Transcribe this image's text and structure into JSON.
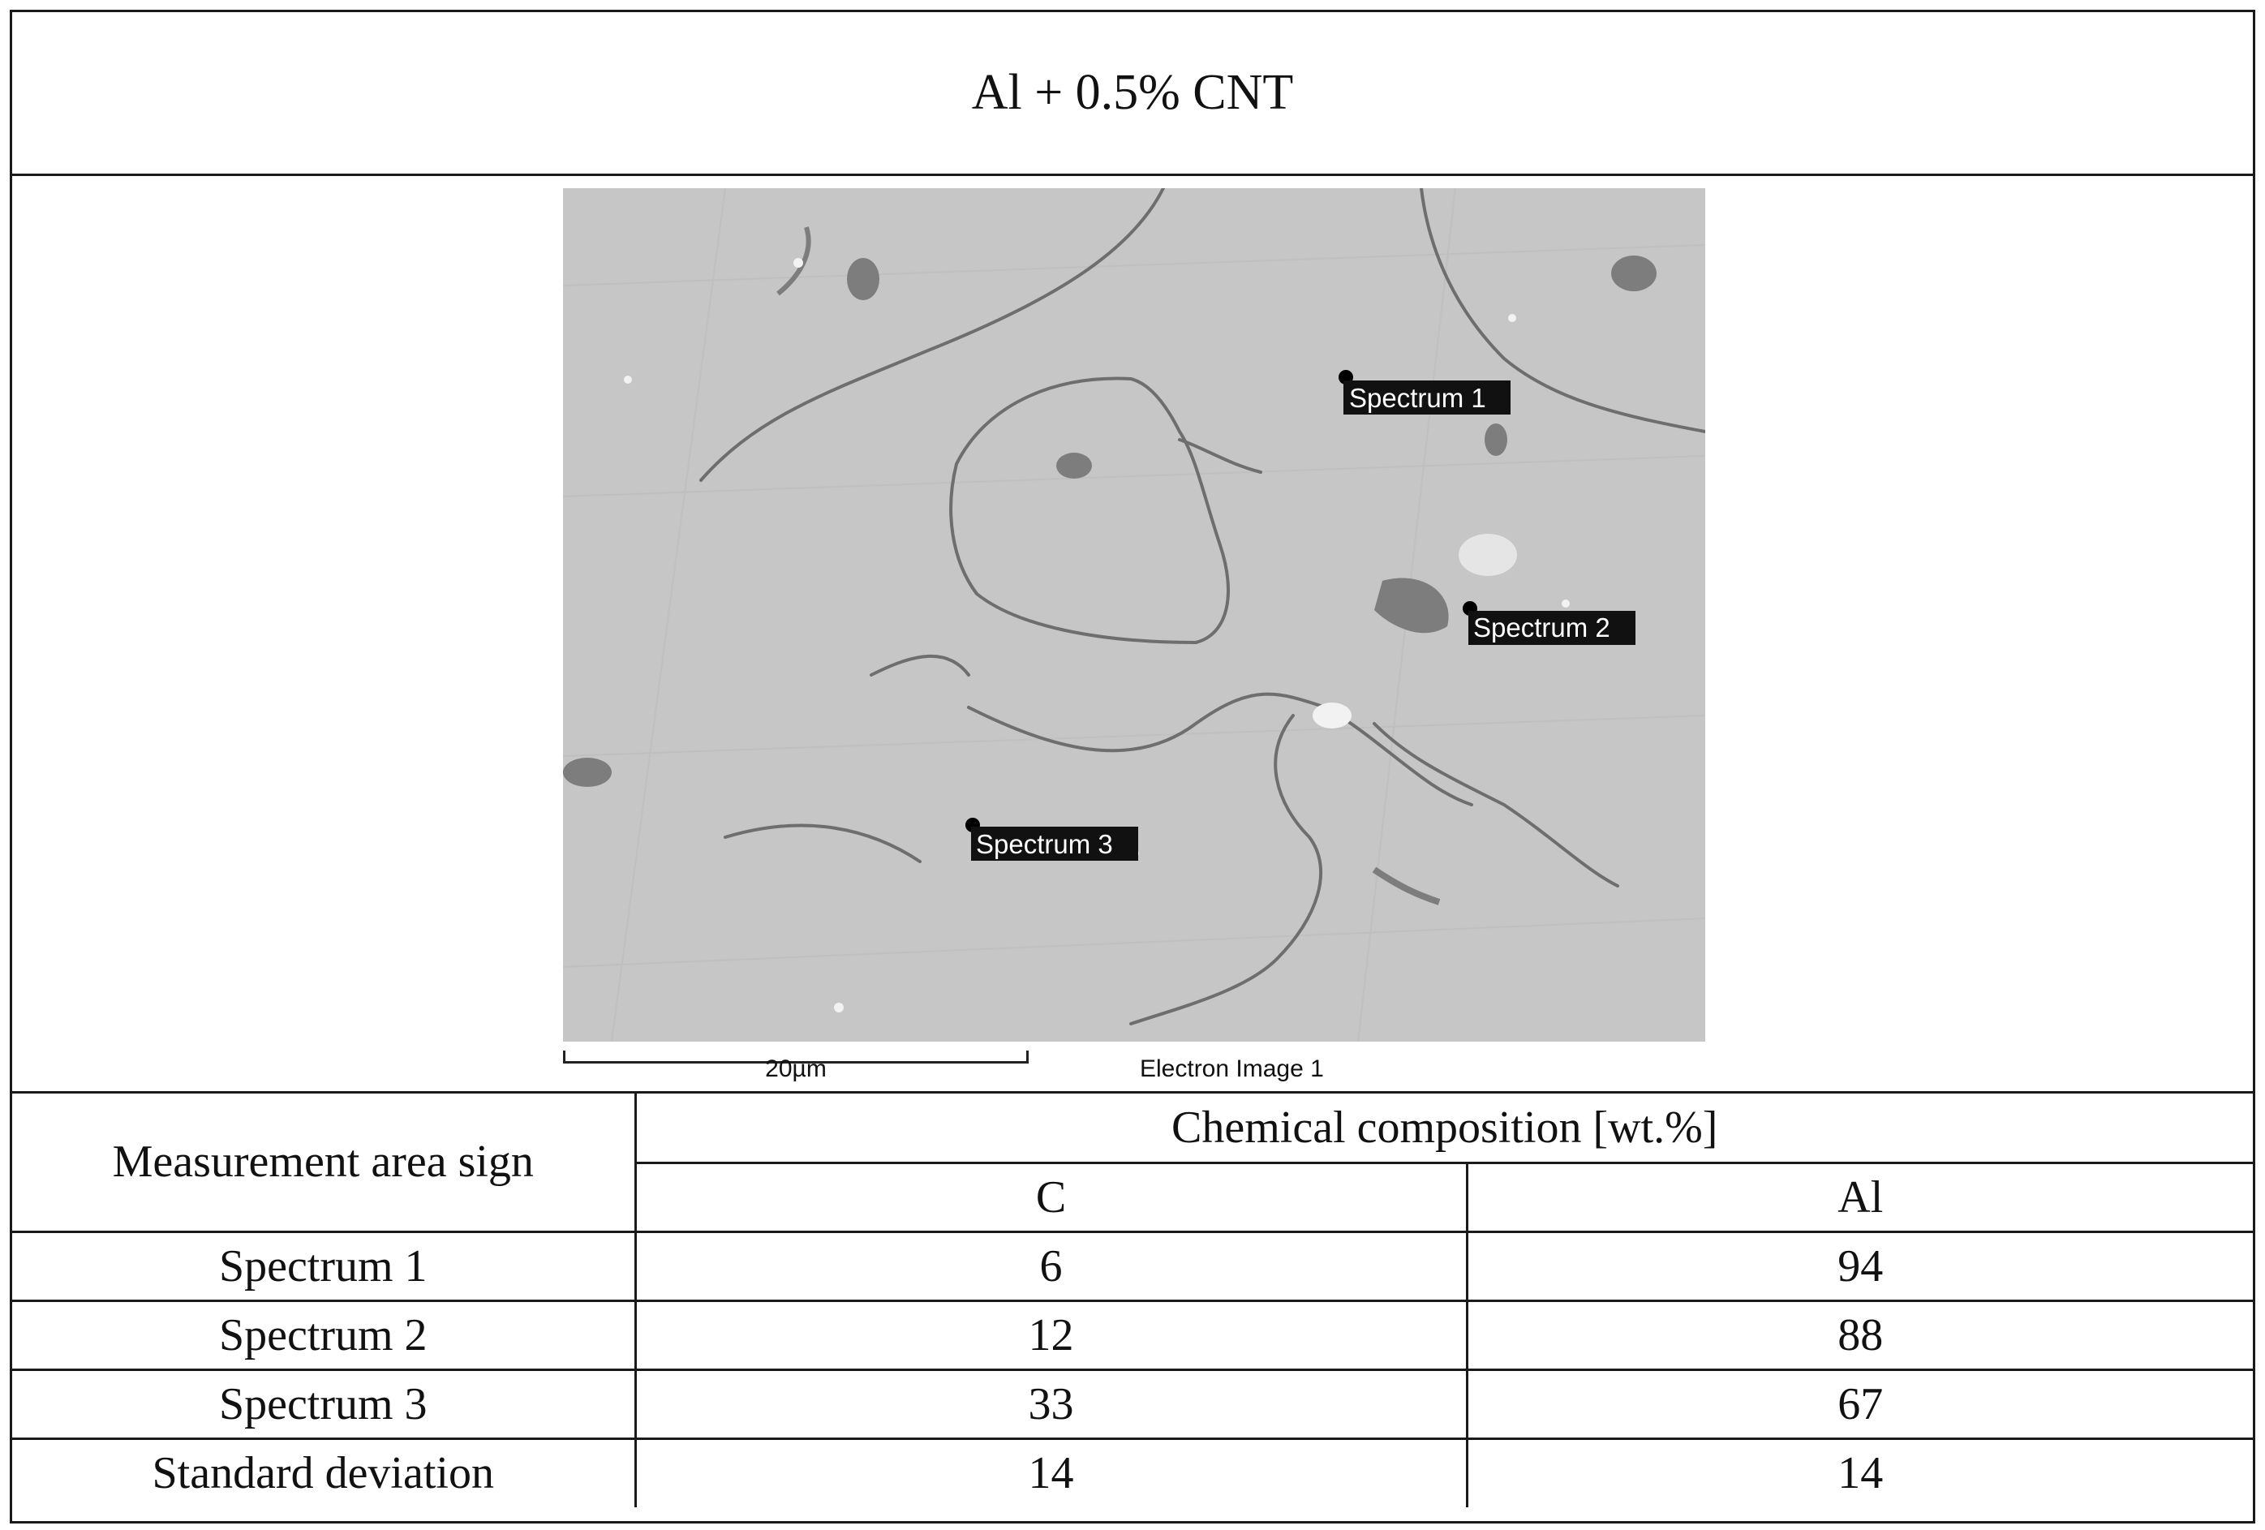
{
  "title": "Al + 0.5% CNT",
  "sem_image": {
    "spectrum_labels": [
      "Spectrum 1",
      "Spectrum 2",
      "Spectrum 3"
    ],
    "scale_bar_label": "20µm",
    "image_caption": "Electron Image 1",
    "colors": {
      "background": "#c9c9c9",
      "label_bg": "#111111",
      "label_text": "#ffffff"
    }
  },
  "table": {
    "row_header": "Measurement area sign",
    "group_header": "Chemical composition [wt.%]",
    "columns": [
      "C",
      "Al"
    ],
    "rows": [
      {
        "label": "Spectrum 1",
        "C": "6",
        "Al": "94"
      },
      {
        "label": "Spectrum 2",
        "C": "12",
        "Al": "88"
      },
      {
        "label": "Spectrum 3",
        "C": "33",
        "Al": "67"
      },
      {
        "label": "Standard deviation",
        "C": "14",
        "Al": "14"
      }
    ]
  }
}
